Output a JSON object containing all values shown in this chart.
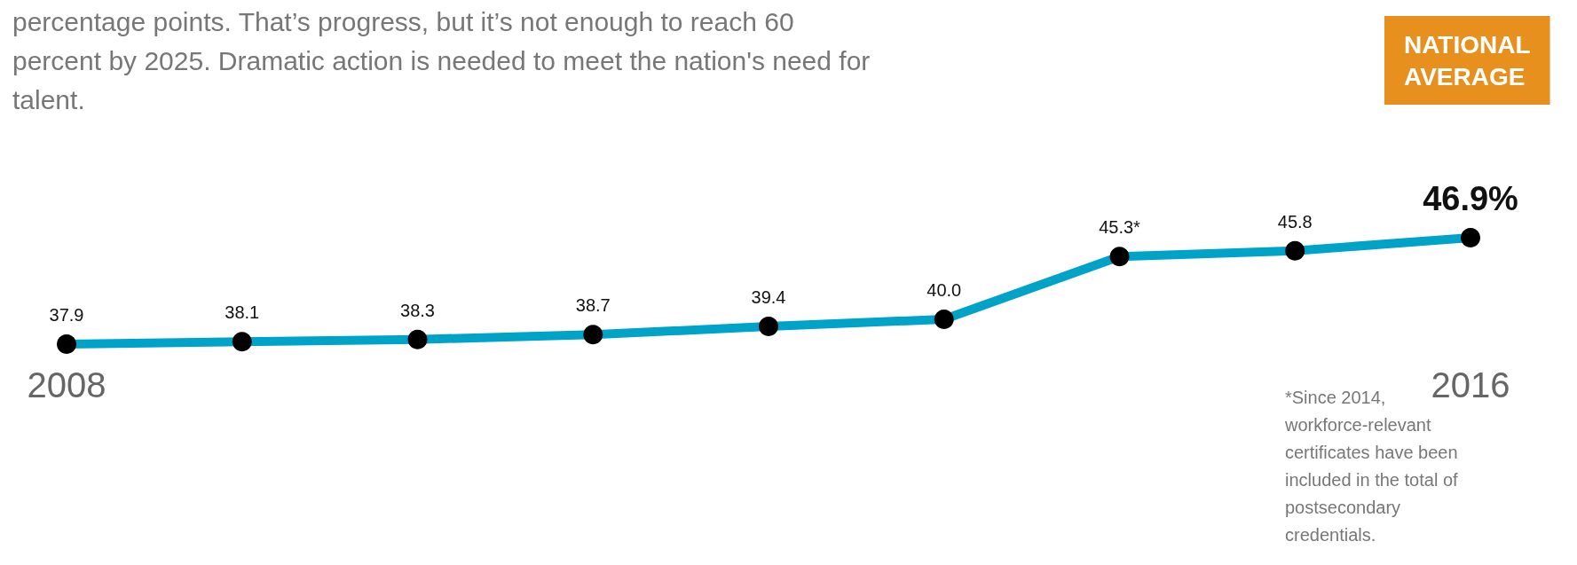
{
  "chart_data": {
    "type": "line",
    "categories": [
      "2008",
      null,
      null,
      null,
      null,
      null,
      null,
      null,
      "2016"
    ],
    "series": [
      {
        "color": "#00a3c8",
        "values": [
          37.9,
          38.1,
          38.3,
          38.7,
          39.4,
          40.0,
          45.3,
          45.8,
          46.9
        ],
        "value_labels": [
          "37.9",
          "38.1",
          "38.3",
          "38.7",
          "39.4",
          "40.0",
          "45.3*",
          "45.8",
          "46.9%"
        ]
      }
    ],
    "marker": "circle",
    "tick_labels": "x",
    "annotations": [
      "percentage points. That’s progress, but it’s not enough to reach 60 percent by 2025. Dramatic action is needed to meet the nation's need for talent.",
      "NATIONAL AVERAGE",
      "*Since 2014, workforce-relevant certificates have been included in the total of postsecondary credentials."
    ]
  }
}
